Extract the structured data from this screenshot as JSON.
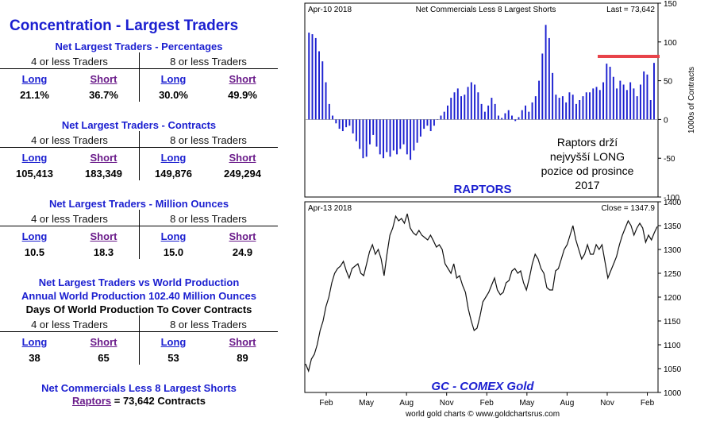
{
  "left_panel": {
    "title": "Concentration - Largest Traders",
    "group_labels": [
      "4 or less Traders",
      "8 or less Traders"
    ],
    "col_labels": [
      "Long",
      "Short",
      "Long",
      "Short"
    ],
    "sections": [
      {
        "title": "Net Largest Traders - Percentages",
        "values": [
          "21.1%",
          "36.7%",
          "30.0%",
          "49.9%"
        ]
      },
      {
        "title": "Net Largest Traders - Contracts",
        "values": [
          "105,413",
          "183,349",
          "149,876",
          "249,294"
        ]
      },
      {
        "title": "Net Largest Traders - Million Ounces",
        "values": [
          "10.5",
          "18.3",
          "15.0",
          "24.9"
        ]
      },
      {
        "title": "Net Largest Traders vs World Production",
        "subtitle1": "Annual World Production 102.40 Million Ounces",
        "subtitle2": "Days Of World Production To Cover Contracts",
        "values": [
          "38",
          "65",
          "53",
          "89"
        ]
      }
    ],
    "footer_title": "Net Commercials Less 8 Largest Shorts",
    "footer_link": "Raptors",
    "footer_rest": " = 73,642 Contracts"
  },
  "top_chart": {
    "date_label": "Apr-10  2018",
    "title": "Net Commercials Less 8 Largest Shorts",
    "last_label": "Last = 73,642",
    "series_label": "RAPTORS",
    "annotation_lines": [
      "Raptors drží",
      "nejvyšší LONG",
      "pozice od prosince",
      "2017"
    ],
    "ylabel": "1000s of Contracts",
    "highlight_color": "#e8434a",
    "bar_color": "#1b1fd0"
  },
  "bottom_chart": {
    "date_label": "Apr-13  2018",
    "close_label": "Close = 1347.9",
    "series_label": "GC - COMEX Gold",
    "line_color": "#111111"
  },
  "x_axis_months": [
    "Feb",
    "May",
    "Aug",
    "Nov",
    "Feb",
    "May",
    "Aug",
    "Nov",
    "Feb"
  ],
  "credit": "world gold charts © www.goldchartsrus.com",
  "chart_data": [
    {
      "type": "bar",
      "title": "Net Commercials Less 8 Largest Shorts",
      "ylabel": "1000s of Contracts",
      "ylim": [
        -100,
        150
      ],
      "yticks": [
        -100,
        -50,
        0,
        50,
        100,
        150
      ],
      "series": [
        {
          "name": "RAPTORS",
          "values": [
            112,
            110,
            105,
            88,
            75,
            48,
            20,
            5,
            -5,
            -12,
            -15,
            -10,
            -8,
            -18,
            -28,
            -38,
            -50,
            -48,
            -32,
            -20,
            -35,
            -45,
            -50,
            -42,
            -48,
            -40,
            -45,
            -38,
            -32,
            -45,
            -52,
            -40,
            -30,
            -22,
            -12,
            -8,
            -15,
            -8,
            0,
            5,
            10,
            18,
            28,
            35,
            40,
            30,
            32,
            42,
            48,
            45,
            35,
            20,
            10,
            18,
            28,
            20,
            5,
            2,
            8,
            12,
            5,
            -2,
            3,
            12,
            18,
            10,
            22,
            30,
            50,
            85,
            122,
            105,
            60,
            32,
            28,
            30,
            22,
            35,
            32,
            20,
            25,
            30,
            35,
            35,
            40,
            42,
            38,
            48,
            72,
            68,
            55,
            40,
            50,
            45,
            38,
            48,
            40,
            30,
            45,
            62,
            58,
            25,
            73
          ]
        }
      ]
    },
    {
      "type": "line",
      "title": "GC - COMEX Gold",
      "ylim": [
        1000,
        1400
      ],
      "yticks": [
        1000,
        1050,
        1100,
        1150,
        1200,
        1250,
        1300,
        1350,
        1400
      ],
      "series": [
        {
          "name": "GC - COMEX Gold",
          "values": [
            1060,
            1045,
            1070,
            1080,
            1100,
            1130,
            1150,
            1180,
            1200,
            1230,
            1250,
            1260,
            1265,
            1275,
            1255,
            1240,
            1260,
            1265,
            1270,
            1250,
            1245,
            1270,
            1295,
            1310,
            1290,
            1300,
            1280,
            1245,
            1290,
            1330,
            1345,
            1370,
            1360,
            1365,
            1355,
            1375,
            1345,
            1335,
            1330,
            1340,
            1330,
            1325,
            1320,
            1330,
            1318,
            1305,
            1310,
            1300,
            1270,
            1260,
            1250,
            1270,
            1240,
            1245,
            1225,
            1210,
            1175,
            1150,
            1130,
            1135,
            1160,
            1190,
            1200,
            1210,
            1225,
            1240,
            1215,
            1205,
            1210,
            1230,
            1235,
            1255,
            1260,
            1250,
            1255,
            1230,
            1215,
            1240,
            1270,
            1290,
            1280,
            1260,
            1250,
            1220,
            1215,
            1215,
            1255,
            1260,
            1280,
            1300,
            1310,
            1330,
            1350,
            1320,
            1300,
            1280,
            1290,
            1310,
            1290,
            1290,
            1310,
            1300,
            1310,
            1275,
            1240,
            1255,
            1270,
            1285,
            1310,
            1330,
            1345,
            1360,
            1350,
            1330,
            1345,
            1355,
            1345,
            1315,
            1330,
            1320,
            1335,
            1348
          ]
        }
      ]
    }
  ]
}
